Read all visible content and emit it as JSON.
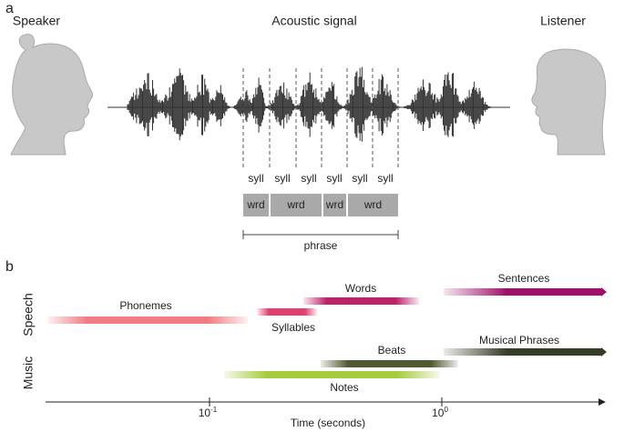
{
  "panel_a": {
    "label": "a",
    "speaker": "Speaker",
    "signal": "Acoustic signal",
    "listener": "Listener",
    "syllables": [
      "syll",
      "syll",
      "syll",
      "syll",
      "syll",
      "syll"
    ],
    "words": [
      "wrd",
      "wrd",
      "wrd",
      "wrd"
    ],
    "phrase": "phrase"
  },
  "panel_b": {
    "label": "b",
    "groups": [
      "Speech",
      "Music"
    ],
    "scales": [
      "Phonemes",
      "Syllables",
      "Words",
      "Sentences",
      "Beats",
      "Musical Phrases",
      "Notes"
    ],
    "x_ticks": [
      {
        "base": "10",
        "exp": "-1"
      },
      {
        "base": "10",
        "exp": "0"
      }
    ],
    "x_label": "Time (seconds)"
  }
}
